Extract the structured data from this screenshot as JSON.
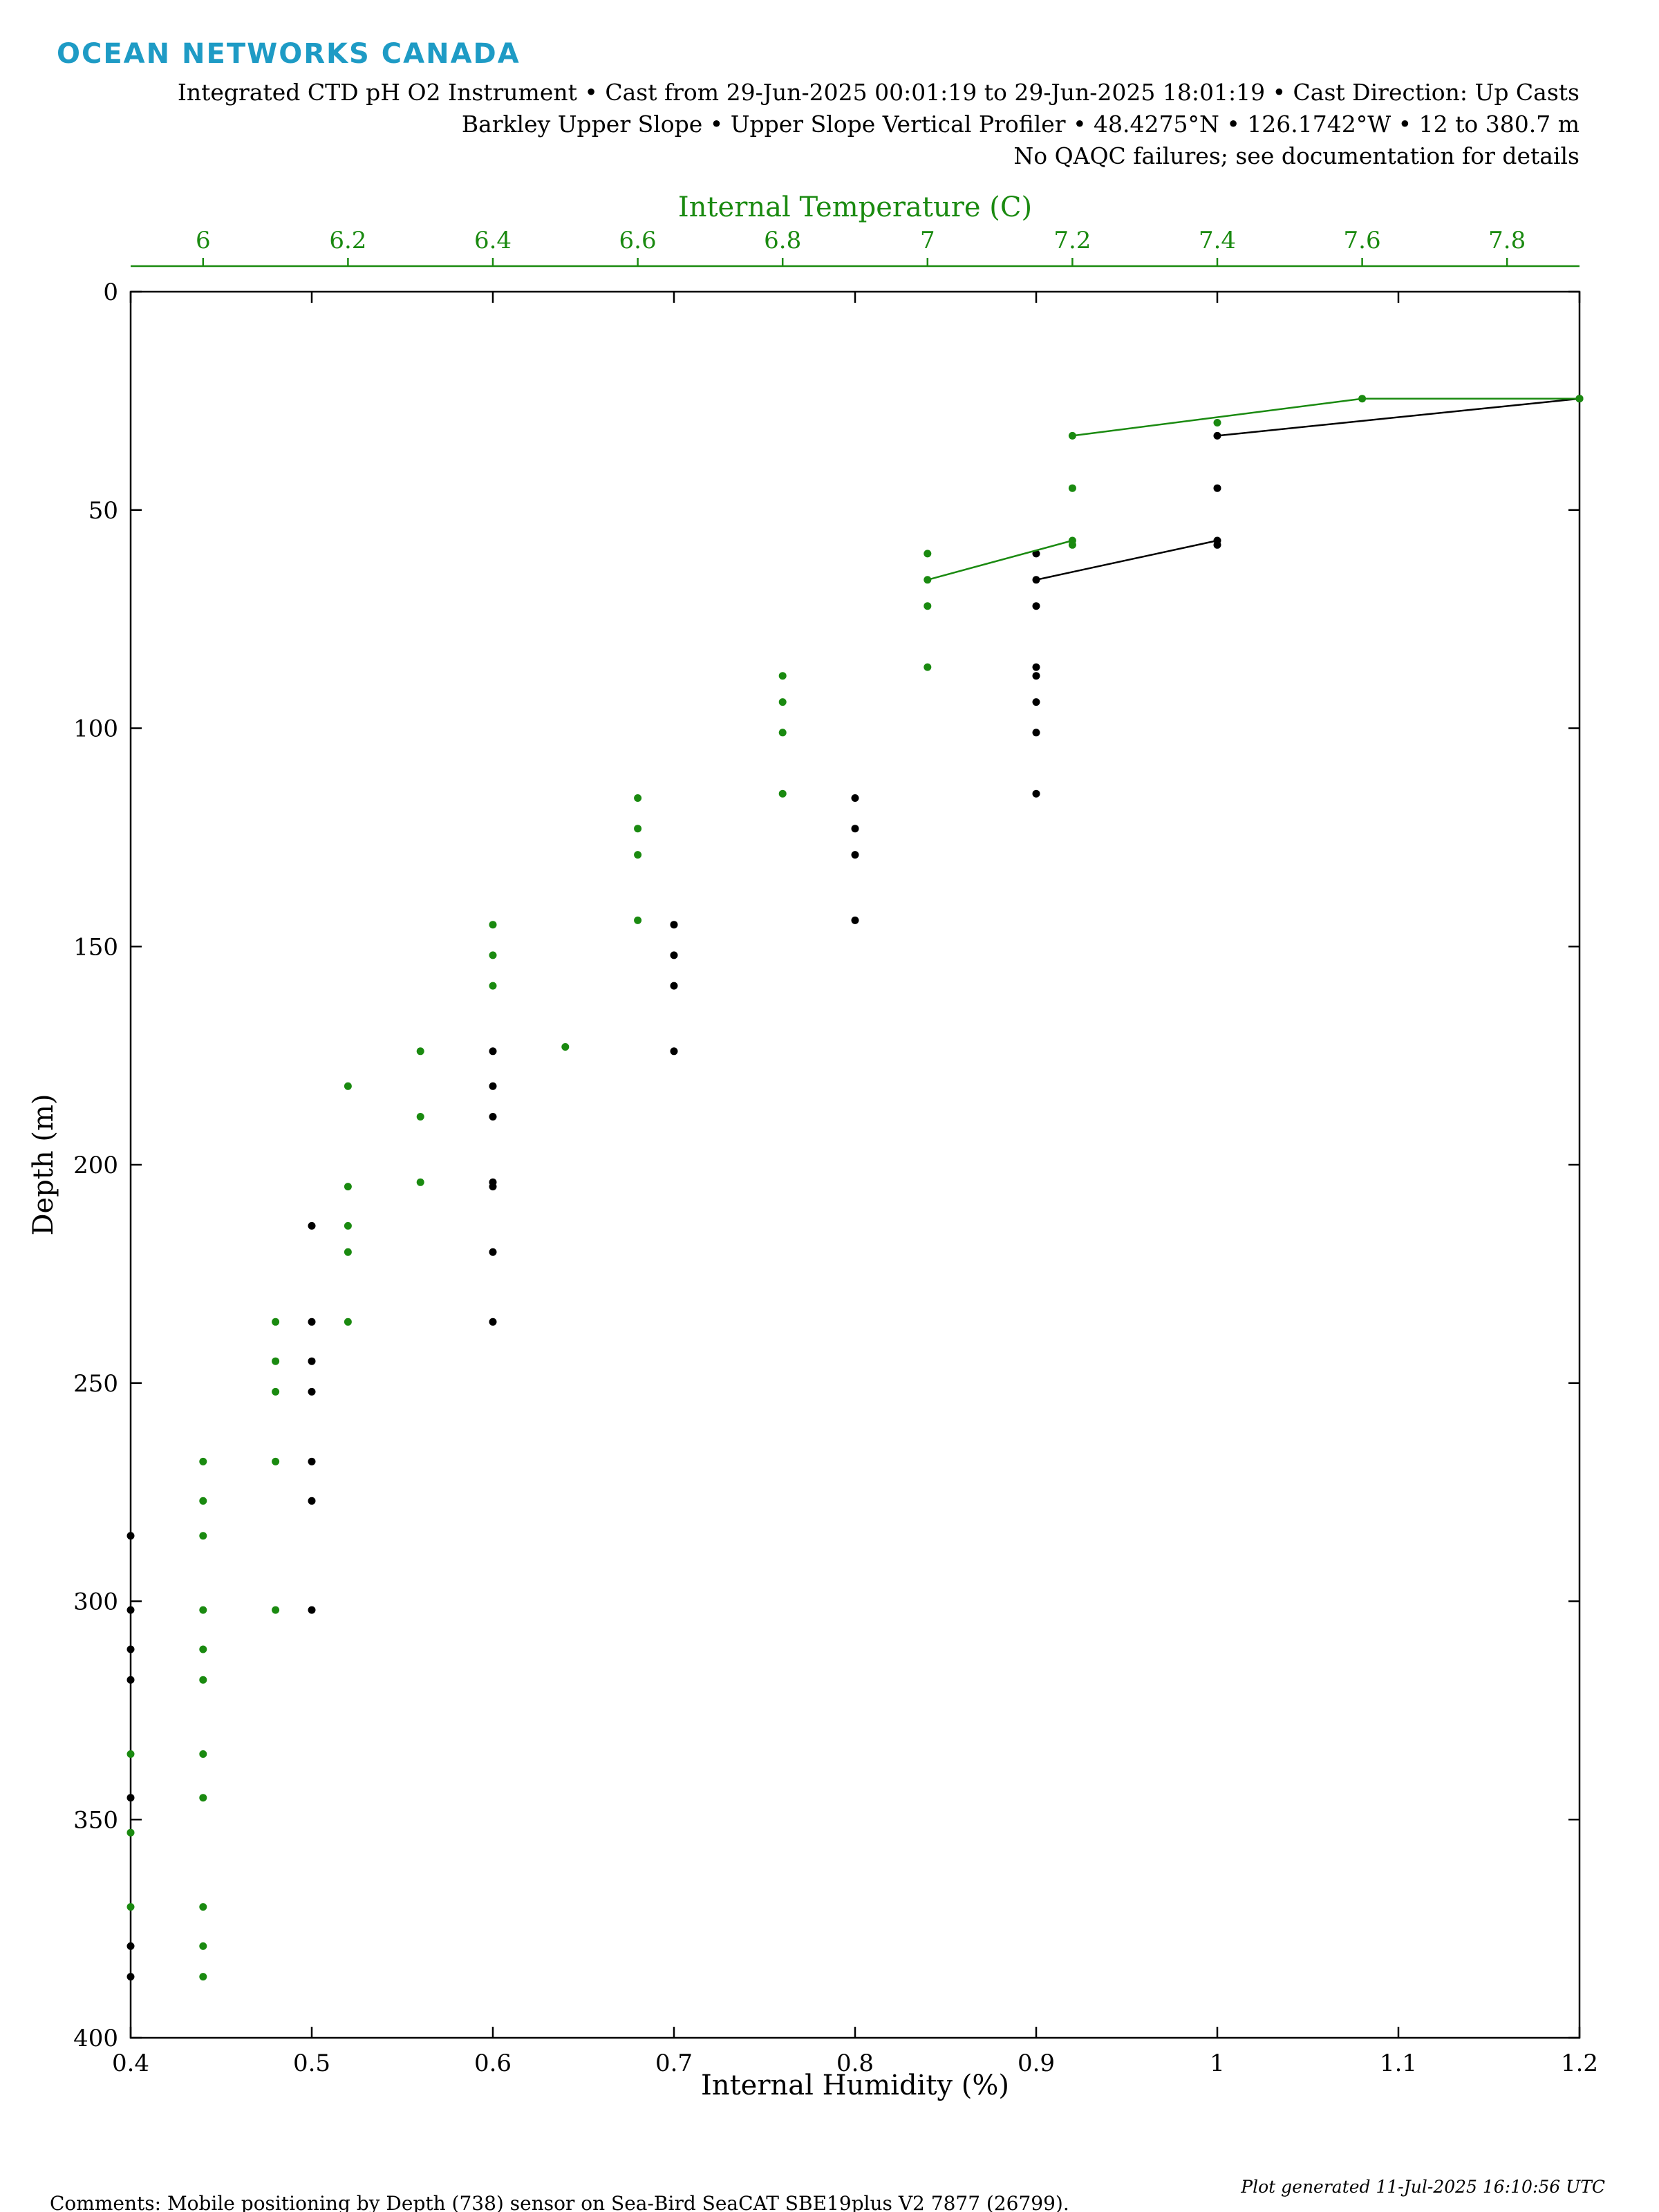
{
  "header": {
    "brand": "OCEAN NETWORKS CANADA",
    "brand_color": "#1e9bc5",
    "line1": "Integrated CTD pH O2 Instrument • Cast from 29-Jun-2025 00:01:19 to 29-Jun-2025 18:01:19 • Cast Direction: Up Casts",
    "line2": "Barkley Upper Slope • Upper Slope Vertical Profiler • 48.4275°N • 126.1742°W • 12 to 380.7 m",
    "line3": "No QAQC failures; see documentation for details"
  },
  "footer": {
    "comments": "Comments: Mobile positioning by Depth (738) sensor on Sea-Bird SeaCAT SBE19plus V2 7877 (26799).",
    "generated": "Plot generated 11-Jul-2025 16:10:56 UTC"
  },
  "chart_data": {
    "type": "scatter",
    "ylabel": "Depth (m)",
    "ylim": [
      0,
      400
    ],
    "yticks": [
      "0",
      "50",
      "100",
      "150",
      "200",
      "250",
      "300",
      "350",
      "400"
    ],
    "y_inverted": true,
    "x_bottom": {
      "label": "Internal Humidity (%)",
      "lim": [
        0.4,
        1.2
      ],
      "ticks": [
        "0.4",
        "0.5",
        "0.6",
        "0.7",
        "0.8",
        "0.9",
        "1",
        "1.1",
        "1.2"
      ],
      "color": "#000000"
    },
    "x_top": {
      "label": "Internal Temperature (C)",
      "lim": [
        5.9,
        7.9
      ],
      "ticks": [
        "6",
        "6.2",
        "6.4",
        "6.6",
        "6.8",
        "7",
        "7.2",
        "7.4",
        "7.6",
        "7.8"
      ],
      "color": "#1a8a10"
    },
    "series": [
      {
        "axis": "bottom",
        "color": "#000000",
        "points": [
          [
            1.2,
            24.5
          ],
          [
            1.0,
            33
          ],
          [
            1.0,
            45
          ],
          [
            1.0,
            57
          ],
          [
            1.0,
            58
          ],
          [
            0.9,
            60
          ],
          [
            0.9,
            66
          ],
          [
            0.9,
            72
          ],
          [
            0.9,
            86
          ],
          [
            0.9,
            88
          ],
          [
            0.9,
            94
          ],
          [
            0.9,
            101
          ],
          [
            0.9,
            115
          ],
          [
            0.8,
            116
          ],
          [
            0.8,
            123
          ],
          [
            0.8,
            129
          ],
          [
            0.8,
            144
          ],
          [
            0.7,
            145
          ],
          [
            0.7,
            152
          ],
          [
            0.7,
            159
          ],
          [
            0.7,
            174
          ],
          [
            0.6,
            174
          ],
          [
            0.6,
            182
          ],
          [
            0.6,
            189
          ],
          [
            0.6,
            204
          ],
          [
            0.6,
            205
          ],
          [
            0.6,
            220
          ],
          [
            0.6,
            236
          ],
          [
            0.5,
            214
          ],
          [
            0.5,
            236
          ],
          [
            0.5,
            245
          ],
          [
            0.5,
            252
          ],
          [
            0.5,
            268
          ],
          [
            0.5,
            277
          ],
          [
            0.5,
            302
          ],
          [
            0.4,
            285
          ],
          [
            0.4,
            302
          ],
          [
            0.4,
            311
          ],
          [
            0.4,
            318
          ],
          [
            0.4,
            345
          ],
          [
            0.4,
            379
          ],
          [
            0.4,
            386
          ]
        ],
        "line_segments": [
          [
            [
              1.0,
              33
            ],
            [
              1.2,
              24.5
            ]
          ],
          [
            [
              0.9,
              66
            ],
            [
              1.0,
              57
            ]
          ]
        ]
      },
      {
        "axis": "top",
        "color": "#1a8a10",
        "points": [
          [
            7.9,
            24.5
          ],
          [
            7.6,
            24.5
          ],
          [
            7.4,
            30
          ],
          [
            7.2,
            33
          ],
          [
            7.2,
            45
          ],
          [
            7.2,
            57
          ],
          [
            7.2,
            58
          ],
          [
            7.0,
            60
          ],
          [
            7.0,
            66
          ],
          [
            7.0,
            72
          ],
          [
            7.0,
            86
          ],
          [
            6.8,
            88
          ],
          [
            6.8,
            94
          ],
          [
            6.8,
            101
          ],
          [
            6.8,
            115
          ],
          [
            6.6,
            116
          ],
          [
            6.6,
            123
          ],
          [
            6.6,
            129
          ],
          [
            6.6,
            144
          ],
          [
            6.4,
            145
          ],
          [
            6.4,
            152
          ],
          [
            6.4,
            159
          ],
          [
            6.5,
            173
          ],
          [
            6.3,
            174
          ],
          [
            6.3,
            189
          ],
          [
            6.3,
            204
          ],
          [
            6.2,
            182
          ],
          [
            6.2,
            205
          ],
          [
            6.2,
            214
          ],
          [
            6.2,
            220
          ],
          [
            6.2,
            236
          ],
          [
            6.1,
            236
          ],
          [
            6.1,
            245
          ],
          [
            6.1,
            252
          ],
          [
            6.1,
            268
          ],
          [
            6.1,
            302
          ],
          [
            6.0,
            268
          ],
          [
            6.0,
            277
          ],
          [
            6.0,
            285
          ],
          [
            6.0,
            302
          ],
          [
            6.0,
            311
          ],
          [
            6.0,
            318
          ],
          [
            6.0,
            335
          ],
          [
            6.0,
            345
          ],
          [
            6.0,
            370
          ],
          [
            6.0,
            379
          ],
          [
            6.0,
            386
          ],
          [
            5.9,
            335
          ],
          [
            5.9,
            353
          ],
          [
            5.9,
            370
          ]
        ],
        "line_segments": [
          [
            [
              7.2,
              33
            ],
            [
              7.6,
              24.5
            ],
            [
              7.9,
              24.5
            ]
          ],
          [
            [
              7.0,
              66
            ],
            [
              7.2,
              57
            ]
          ]
        ]
      }
    ]
  }
}
